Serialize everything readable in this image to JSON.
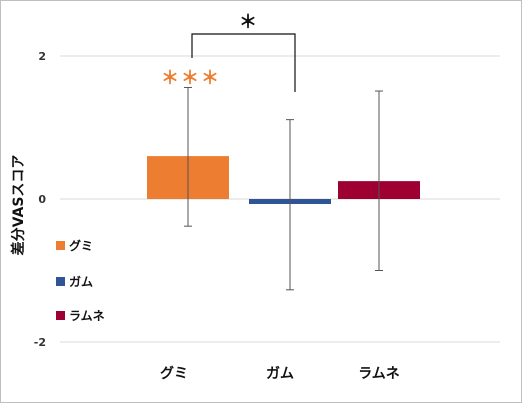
{
  "chart_data": {
    "type": "bar",
    "title": "",
    "xlabel": "",
    "ylabel": "差分VASスコア",
    "ylim": [
      -2.5,
      2.5
    ],
    "yticks": [
      -2,
      0,
      2
    ],
    "ytick_labels": [
      "-2",
      "0",
      "2"
    ],
    "grid": true,
    "legend_position": "left",
    "categories": [
      "グミ",
      "ガム",
      "ラムネ"
    ],
    "values": [
      0.6,
      -0.07,
      0.25
    ],
    "error_low": [
      -0.38,
      -1.27,
      -1.0
    ],
    "error_high": [
      1.56,
      1.11,
      1.51
    ],
    "colors": [
      "#ED7D31",
      "#2F5597",
      "#9E0034"
    ],
    "legend": [
      "グミ",
      "ガム",
      "ラムネ"
    ],
    "annotations": [
      {
        "text": "＊＊＊",
        "category": "グミ",
        "color": "#ED7D31"
      },
      {
        "text": "＊",
        "between": [
          "グミ",
          "ガム"
        ],
        "color": "#111111"
      }
    ]
  }
}
